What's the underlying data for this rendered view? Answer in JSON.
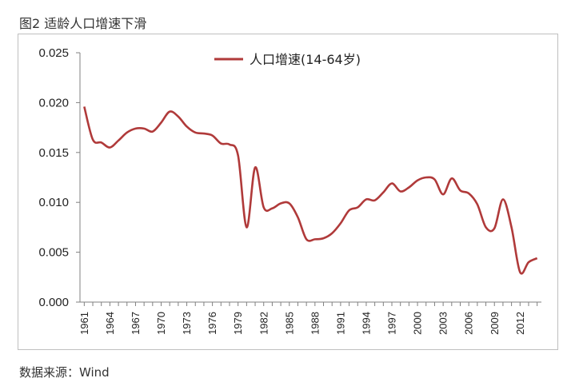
{
  "figure_title": "图2 适龄人口增速下滑",
  "source_note": "数据来源：Wind",
  "chart_data": {
    "type": "line",
    "title": "",
    "xlabel": "",
    "ylabel": "",
    "ylim": [
      0,
      0.025
    ],
    "yticks": [
      "0.000",
      "0.005",
      "0.010",
      "0.015",
      "0.020",
      "0.025"
    ],
    "xticks": [
      "1961",
      "1964",
      "1967",
      "1970",
      "1973",
      "1976",
      "1979",
      "1982",
      "1985",
      "1988",
      "1991",
      "1994",
      "1997",
      "2000",
      "2003",
      "2006",
      "2009",
      "2012"
    ],
    "legend_position": "top",
    "grid": false,
    "series": [
      {
        "name": "人口增速(14-64岁)",
        "color": "#b03a3a",
        "x": [
          1961,
          1962,
          1963,
          1964,
          1965,
          1966,
          1967,
          1968,
          1969,
          1970,
          1971,
          1972,
          1973,
          1974,
          1975,
          1976,
          1977,
          1978,
          1979,
          1980,
          1981,
          1982,
          1983,
          1984,
          1985,
          1986,
          1987,
          1988,
          1989,
          1990,
          1991,
          1992,
          1993,
          1994,
          1995,
          1996,
          1997,
          1998,
          1999,
          2000,
          2001,
          2002,
          2003,
          2004,
          2005,
          2006,
          2007,
          2008,
          2009,
          2010,
          2011,
          2012,
          2013,
          2014
        ],
        "values": [
          0.0196,
          0.0163,
          0.016,
          0.0155,
          0.0162,
          0.017,
          0.0174,
          0.0174,
          0.0171,
          0.018,
          0.0191,
          0.0186,
          0.0176,
          0.017,
          0.0169,
          0.0167,
          0.0159,
          0.0158,
          0.0147,
          0.0075,
          0.0135,
          0.0095,
          0.0094,
          0.0099,
          0.0099,
          0.0085,
          0.0063,
          0.0063,
          0.0064,
          0.0069,
          0.0079,
          0.0092,
          0.0095,
          0.0103,
          0.0102,
          0.011,
          0.0119,
          0.0111,
          0.0115,
          0.0122,
          0.0125,
          0.0123,
          0.0108,
          0.0124,
          0.0112,
          0.0109,
          0.0098,
          0.0075,
          0.0074,
          0.0103,
          0.0075,
          0.003,
          0.004,
          0.0044
        ]
      }
    ]
  }
}
